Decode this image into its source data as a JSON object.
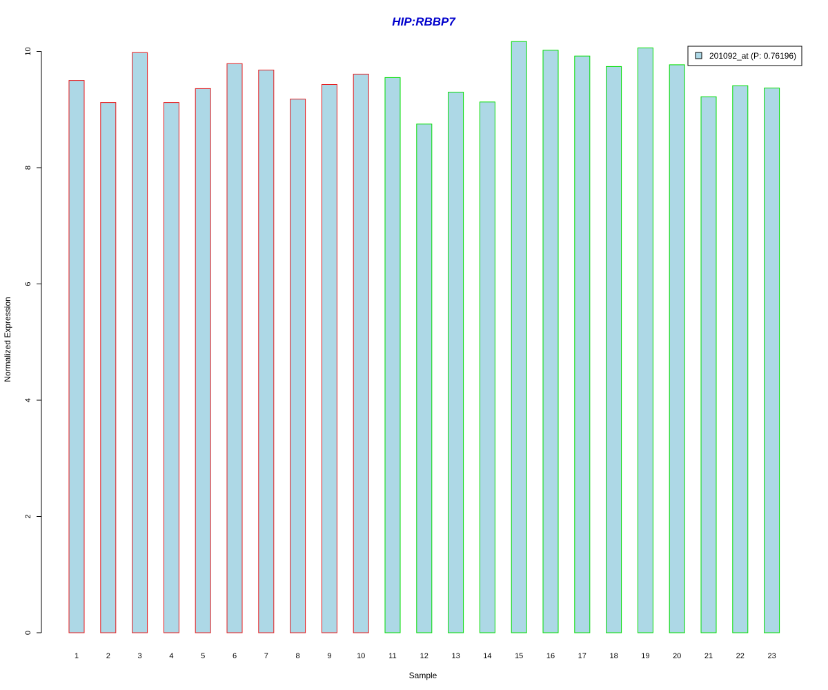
{
  "chart_data": {
    "type": "bar",
    "title": "HIP:RBBP7",
    "xlabel": "Sample",
    "ylabel": "Normalized Expression",
    "categories": [
      "1",
      "2",
      "3",
      "4",
      "5",
      "6",
      "7",
      "8",
      "9",
      "10",
      "11",
      "12",
      "13",
      "14",
      "15",
      "16",
      "17",
      "18",
      "19",
      "20",
      "21",
      "22",
      "23"
    ],
    "series": [
      {
        "name": "201092_at (P: 0.76196)",
        "values": [
          9.5,
          9.12,
          9.98,
          9.12,
          9.36,
          9.79,
          9.68,
          9.18,
          9.43,
          9.61,
          9.55,
          8.75,
          9.3,
          9.13,
          10.17,
          10.02,
          9.92,
          9.74,
          10.06,
          9.77,
          9.22,
          9.41,
          9.37
        ]
      }
    ],
    "group_edge_colors": [
      "#e41a1c",
      "#e41a1c",
      "#e41a1c",
      "#e41a1c",
      "#e41a1c",
      "#e41a1c",
      "#e41a1c",
      "#e41a1c",
      "#e41a1c",
      "#e41a1c",
      "#00dd00",
      "#00dd00",
      "#00dd00",
      "#00dd00",
      "#00dd00",
      "#00dd00",
      "#00dd00",
      "#00dd00",
      "#00dd00",
      "#00dd00",
      "#00dd00",
      "#00dd00",
      "#00dd00"
    ],
    "bar_fill_color": "#add8e6",
    "title_color": "#0000cc",
    "yticks": [
      0,
      2,
      4,
      6,
      8,
      10
    ],
    "ylim": [
      0,
      10.3
    ],
    "grid": false,
    "legend_position": "top-right"
  }
}
